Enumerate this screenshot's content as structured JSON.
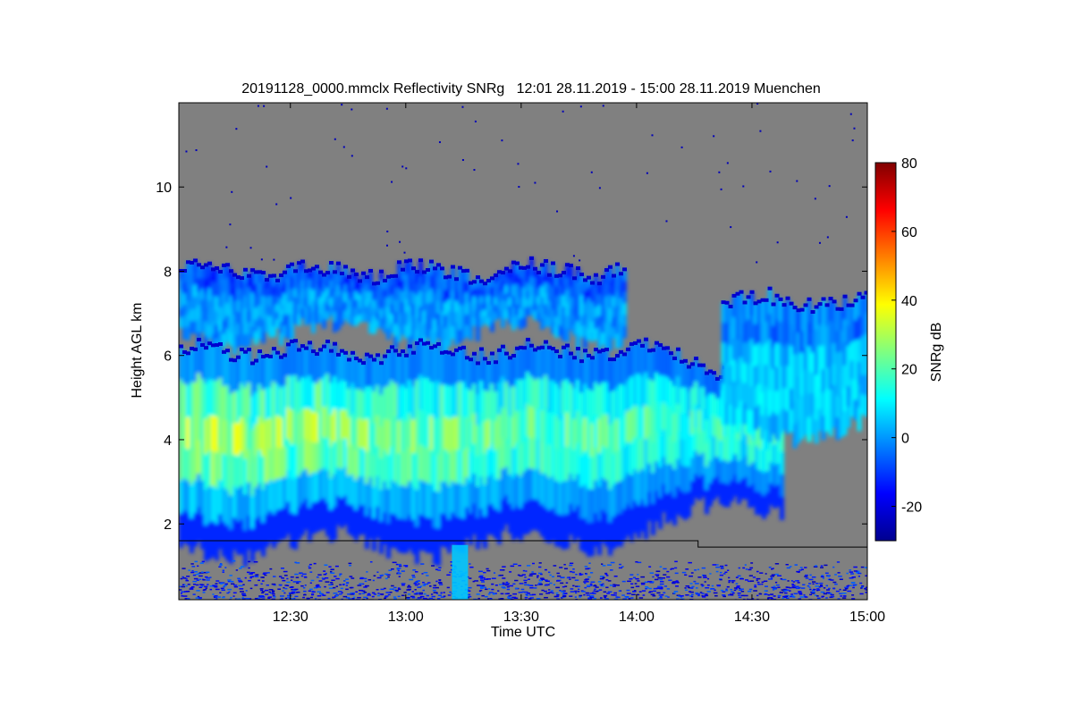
{
  "chart_data": {
    "type": "heatmap",
    "title": "20191128_0000.mmclx Reflectivity SNRg   12:01 28.11.2019 - 15:00 28.11.2019 Muenchen",
    "xlabel": "Time UTC",
    "ylabel": "Height AGL km",
    "x_range": [
      "12:01",
      "15:00"
    ],
    "x_ticks": [
      "12:30",
      "13:00",
      "13:30",
      "14:00",
      "14:30",
      "15:00"
    ],
    "y_range_km": [
      0.2,
      12.0
    ],
    "y_ticks": [
      2,
      4,
      6,
      8,
      10
    ],
    "colorbar": {
      "label": "SNRg dB",
      "range": [
        -30,
        80
      ],
      "ticks": [
        -20,
        0,
        20,
        40,
        60,
        80
      ],
      "colormap": "jet"
    },
    "background_color": "#808080",
    "layers": [
      {
        "description_from_pixels": "upper cloud layer",
        "time_start": "12:01",
        "time_end": "13:57",
        "base_km": 6.5,
        "top_km": 8.0,
        "typical_snr_db": -5
      },
      {
        "description_from_pixels": "main cloud layer",
        "time_start": "12:01",
        "time_end": "14:38",
        "base_km": 1.5,
        "top_km": 6.1,
        "typical_snr_db": 25,
        "max_snr_db": 40
      },
      {
        "description_from_pixels": "right cloud layer",
        "time_start": "14:22",
        "time_end": "15:00",
        "base_km": 4.3,
        "top_km": 7.3,
        "typical_snr_db": 0
      }
    ],
    "line_height_km": [
      {
        "time": "12:01",
        "km": 1.6
      },
      {
        "time": "14:16",
        "km": 1.6
      },
      {
        "time": "14:16",
        "km": 1.45
      },
      {
        "time": "15:00",
        "km": 1.45
      }
    ]
  }
}
